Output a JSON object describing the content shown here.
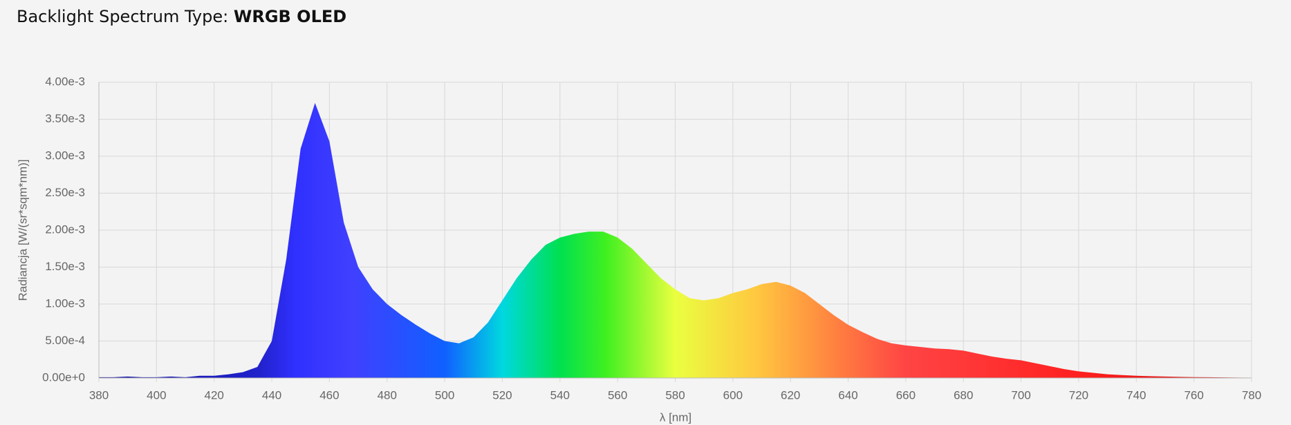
{
  "chart_data": {
    "type": "area",
    "title": "Backlight Spectrum Type:",
    "title_emphasis": "WRGB OLED",
    "x_label": "λ [nm]",
    "y_label": "Radiancja [W/(sr*sqm*nm)]",
    "x": [
      380,
      385,
      390,
      395,
      400,
      405,
      410,
      415,
      420,
      425,
      430,
      435,
      440,
      445,
      450,
      455,
      460,
      465,
      470,
      475,
      480,
      485,
      490,
      495,
      500,
      505,
      510,
      515,
      520,
      525,
      530,
      535,
      540,
      545,
      550,
      555,
      560,
      565,
      570,
      575,
      580,
      585,
      590,
      595,
      600,
      605,
      610,
      615,
      620,
      625,
      630,
      635,
      640,
      645,
      650,
      655,
      660,
      665,
      670,
      675,
      680,
      685,
      690,
      695,
      700,
      705,
      710,
      715,
      720,
      725,
      730,
      735,
      740,
      745,
      750,
      755,
      760,
      765,
      770,
      775,
      780
    ],
    "y": [
      1e-05,
      1e-05,
      2e-05,
      1e-05,
      1e-05,
      2e-05,
      1e-05,
      3e-05,
      3e-05,
      5e-05,
      8e-05,
      0.00015,
      0.0005,
      0.0016,
      0.0031,
      0.00372,
      0.0032,
      0.0021,
      0.0015,
      0.0012,
      0.001,
      0.00085,
      0.00072,
      0.0006,
      0.0005,
      0.00047,
      0.00055,
      0.00075,
      0.00105,
      0.00135,
      0.0016,
      0.0018,
      0.0019,
      0.00195,
      0.00198,
      0.00198,
      0.0019,
      0.00175,
      0.00155,
      0.00135,
      0.0012,
      0.00108,
      0.00105,
      0.00108,
      0.00115,
      0.0012,
      0.00127,
      0.0013,
      0.00125,
      0.00115,
      0.001,
      0.00085,
      0.00072,
      0.00062,
      0.00053,
      0.00047,
      0.00044,
      0.00042,
      0.0004,
      0.00039,
      0.00037,
      0.00033,
      0.00029,
      0.00026,
      0.00024,
      0.0002,
      0.00016,
      0.00012,
      9e-05,
      7e-05,
      5e-05,
      4e-05,
      3e-05,
      2.5e-05,
      2e-05,
      1.5e-05,
      1.2e-05,
      1e-05,
      8e-06,
      6e-06,
      5e-06
    ],
    "xlim": [
      380,
      780
    ],
    "xticks": [
      380,
      400,
      420,
      440,
      460,
      480,
      500,
      520,
      540,
      560,
      580,
      600,
      620,
      640,
      660,
      680,
      700,
      720,
      740,
      760,
      780
    ],
    "ylim": [
      0,
      0.004
    ],
    "yticks": [
      {
        "value": 0,
        "label": "0.00e+0"
      },
      {
        "value": 0.0005,
        "label": "5.00e-4"
      },
      {
        "value": 0.001,
        "label": "1.00e-3"
      },
      {
        "value": 0.0015,
        "label": "1.50e-3"
      },
      {
        "value": 0.002,
        "label": "2.00e-3"
      },
      {
        "value": 0.0025,
        "label": "2.50e-3"
      },
      {
        "value": 0.003,
        "label": "3.00e-3"
      },
      {
        "value": 0.0035,
        "label": "3.50e-3"
      },
      {
        "value": 0.004,
        "label": "4.00e-3"
      }
    ],
    "grid": true
  }
}
